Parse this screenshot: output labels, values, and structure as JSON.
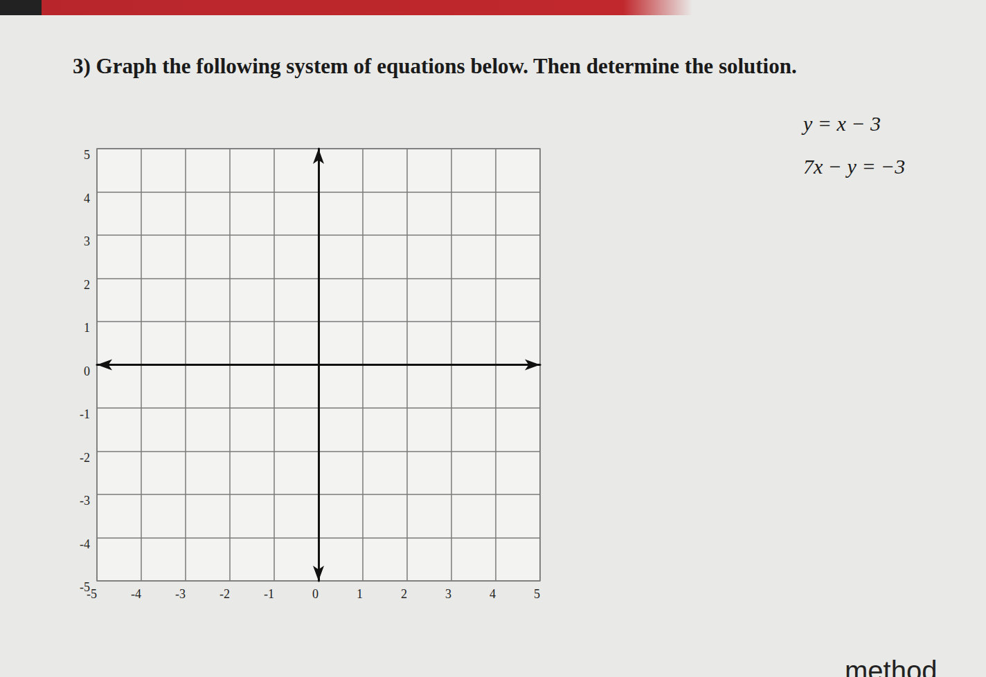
{
  "heading": "3) Graph the following system of equations below. Then determine the solution.",
  "equations": [
    "y = x − 3",
    "7x − y = −3"
  ],
  "footer": "method",
  "chart_data": {
    "type": "scatter",
    "xlim": [
      -5,
      5
    ],
    "ylim": [
      -5,
      5
    ],
    "xticks": [
      -5,
      -4,
      -3,
      -2,
      -1,
      0,
      1,
      2,
      3,
      4,
      5
    ],
    "yticks": [
      -5,
      -4,
      -3,
      -2,
      -1,
      0,
      1,
      2,
      3,
      4,
      5
    ],
    "grid": true
  }
}
